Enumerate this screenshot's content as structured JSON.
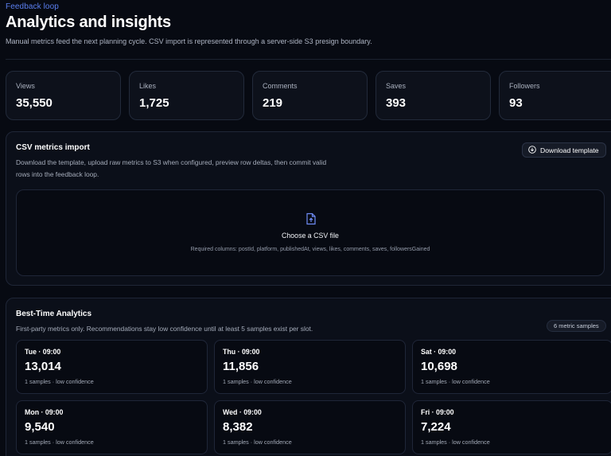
{
  "header": {
    "eyebrow": "Feedback loop",
    "title": "Analytics and insights",
    "subtitle": "Manual metrics feed the next planning cycle. CSV import is represented through a server-side S3 presign boundary."
  },
  "stats": [
    {
      "label": "Views",
      "value": "35,550"
    },
    {
      "label": "Likes",
      "value": "1,725"
    },
    {
      "label": "Comments",
      "value": "219"
    },
    {
      "label": "Saves",
      "value": "393"
    },
    {
      "label": "Followers",
      "value": "93"
    }
  ],
  "csv_import": {
    "title": "CSV metrics import",
    "description": "Download the template, upload raw metrics to S3 when configured, preview row deltas, then commit valid rows into the feedback loop.",
    "download_label": "Download template",
    "download_icon": "download-icon",
    "dropzone": {
      "icon": "upload-file-icon",
      "title": "Choose a CSV file",
      "hint": "Required columns: postId, platform, publishedAt, views, likes, comments, saves, followersGained"
    }
  },
  "best_time": {
    "title": "Best-Time Analytics",
    "description": "First-party metrics only. Recommendations stay low confidence until at least 5 samples exist per slot.",
    "badge": "6 metric samples",
    "slots": [
      {
        "time": "Tue · 09:00",
        "value": "13,014",
        "meta": "1 samples · low confidence"
      },
      {
        "time": "Thu · 09:00",
        "value": "11,856",
        "meta": "1 samples · low confidence"
      },
      {
        "time": "Sat · 09:00",
        "value": "10,698",
        "meta": "1 samples · low confidence"
      },
      {
        "time": "Mon · 09:00",
        "value": "9,540",
        "meta": "1 samples · low confidence"
      },
      {
        "time": "Wed · 09:00",
        "value": "8,382",
        "meta": "1 samples · low confidence"
      },
      {
        "time": "Fri · 09:00",
        "value": "7,224",
        "meta": "1 samples · low confidence"
      }
    ]
  },
  "colors": {
    "accent": "#5b7ff0",
    "background": "#070a12",
    "card": "#0b0f19",
    "border": "#1f2637"
  }
}
